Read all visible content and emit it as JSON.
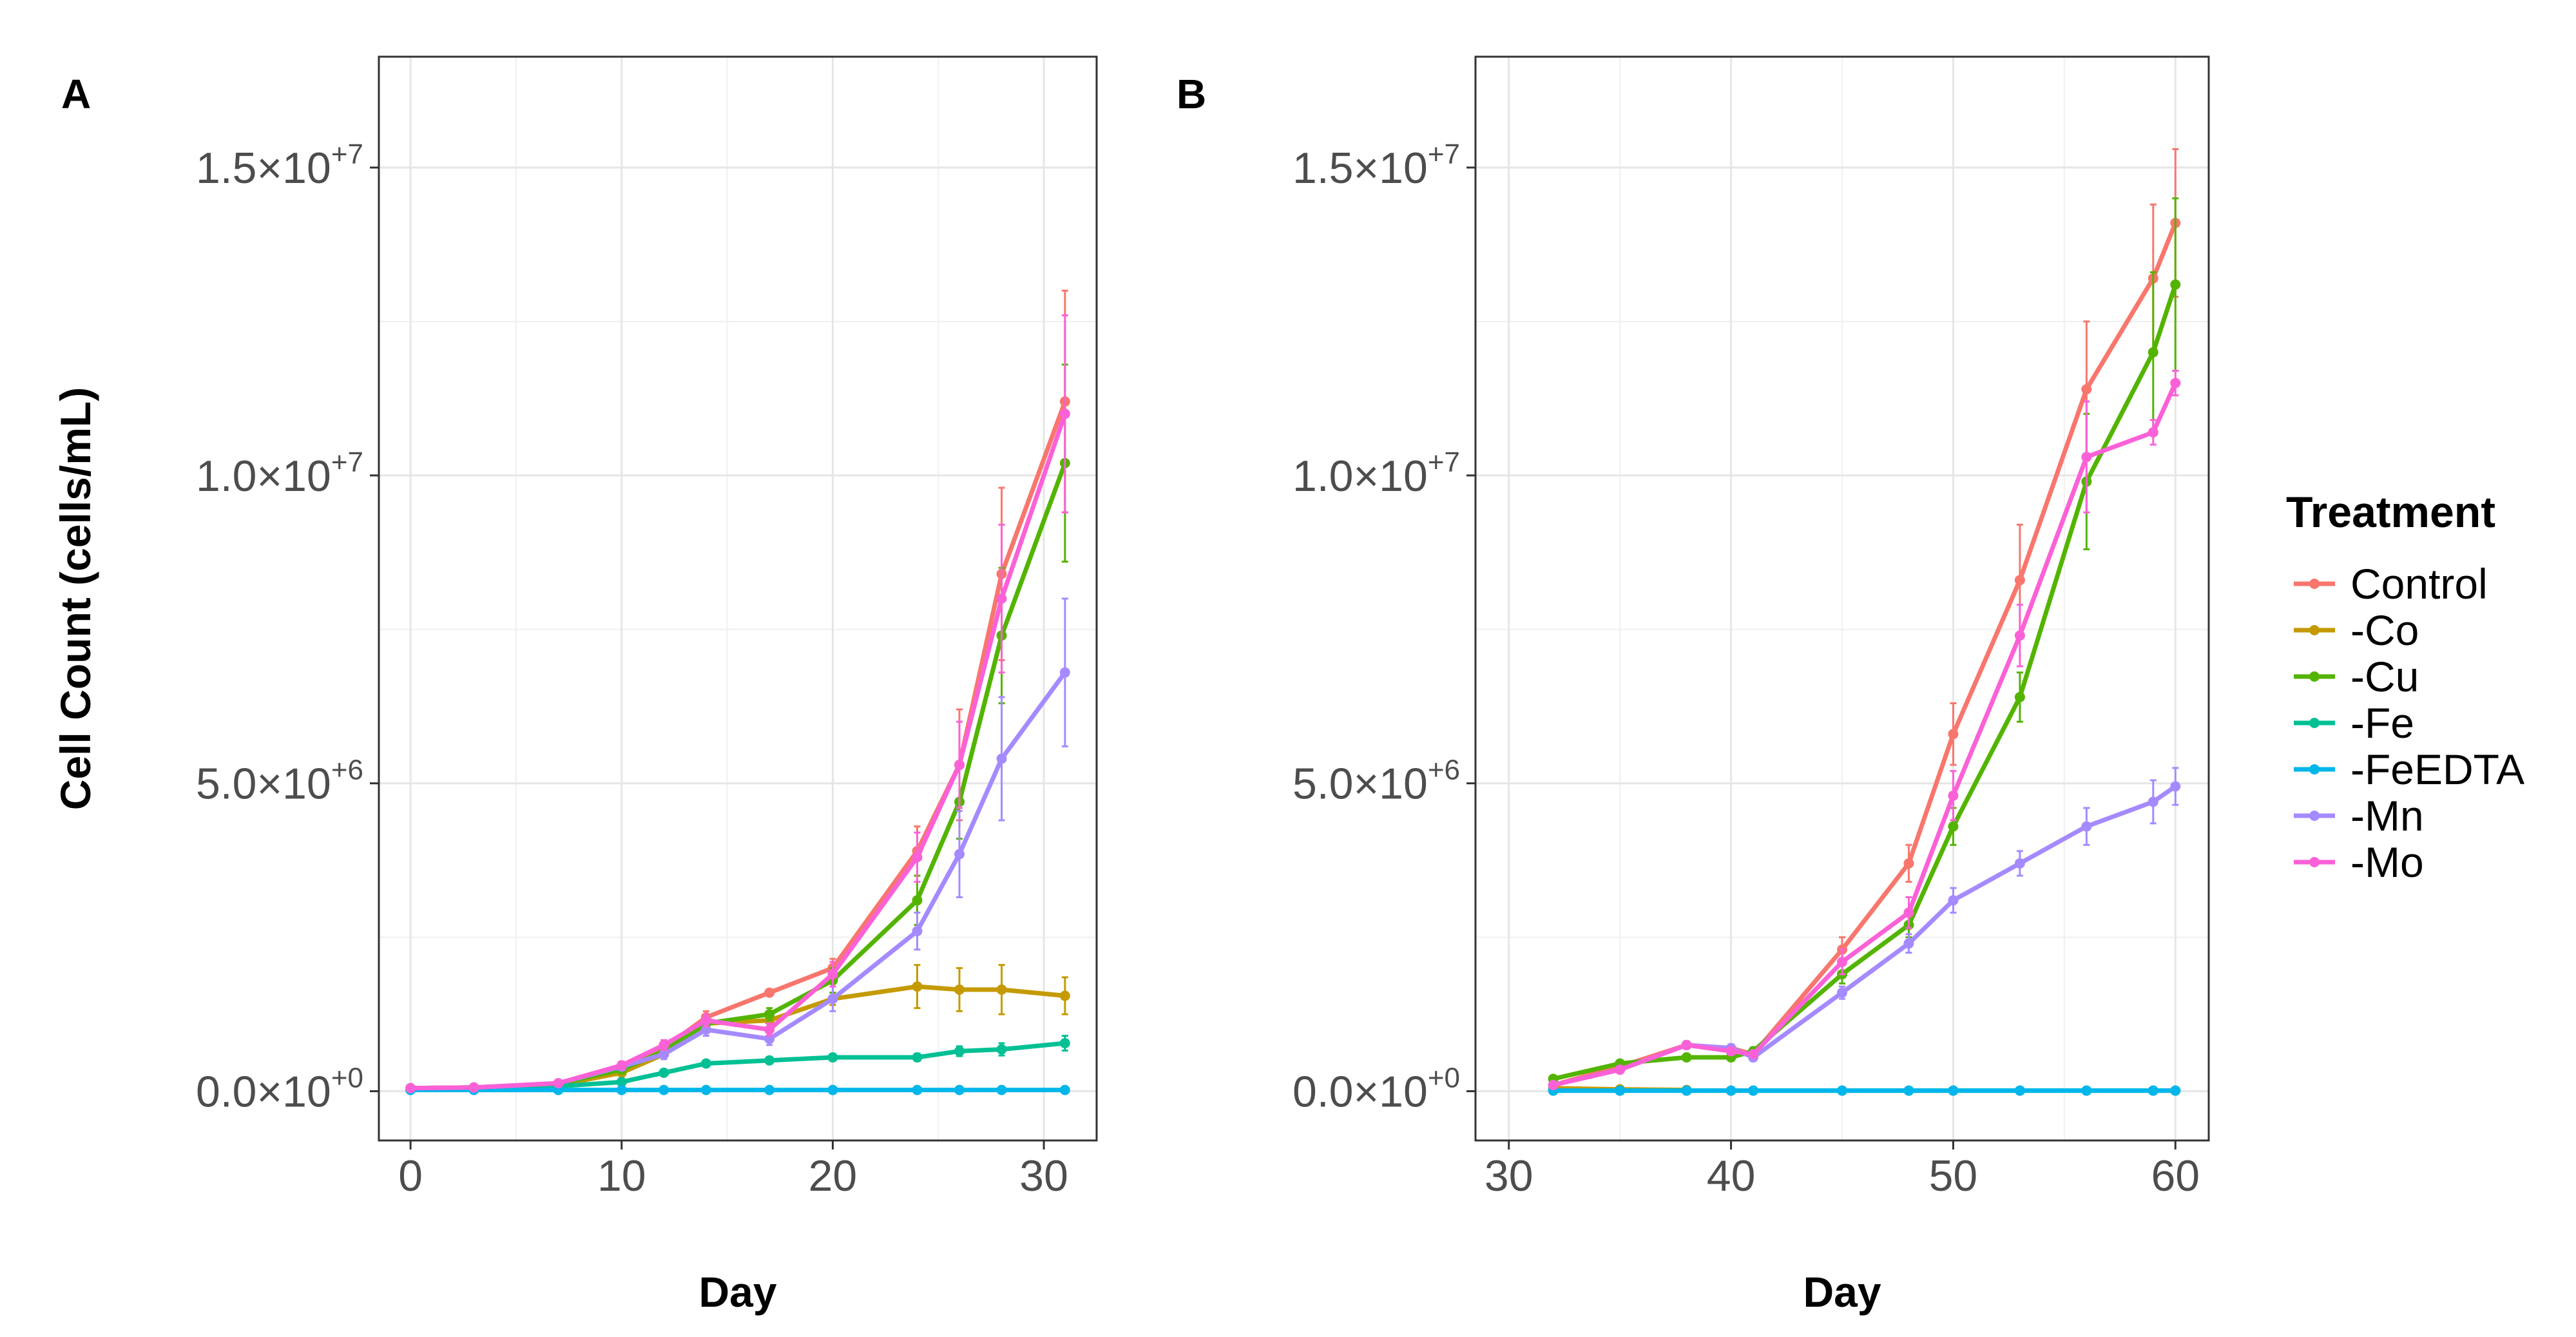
{
  "chart_data": [
    {
      "type": "line",
      "panel_label": "A",
      "xlabel": "Day",
      "ylabel": "Cell Count (cells/mL)",
      "xlim": [
        -1.5,
        32.5
      ],
      "ylim": [
        -800000,
        16800000
      ],
      "x_ticks": [
        0,
        10,
        20,
        30
      ],
      "x_tick_labels": [
        "0",
        "10",
        "20",
        "30"
      ],
      "y_ticks": [
        0,
        5000000,
        10000000,
        15000000
      ],
      "y_tick_labels": [
        {
          "mant": "0.0",
          "exp": "+0"
        },
        {
          "mant": "5.0",
          "exp": "+6"
        },
        {
          "mant": "1.0",
          "exp": "+7"
        },
        {
          "mant": "1.5",
          "exp": "+7"
        }
      ],
      "grid": true,
      "x": [
        0,
        3,
        7,
        10,
        12,
        14,
        17,
        20,
        24,
        26,
        28,
        31
      ],
      "series": [
        {
          "name": "Control",
          "color": "#F8766D",
          "values": [
            50000,
            60000,
            120000,
            380000,
            700000,
            1200000,
            1600000,
            2000000,
            3900000,
            5300000,
            8400000,
            11200000
          ],
          "errors": [
            10000,
            10000,
            30000,
            60000,
            80000,
            100000,
            50000,
            150000,
            400000,
            900000,
            1400000,
            1800000
          ]
        },
        {
          "name": "-Co",
          "color": "#C49A00",
          "values": [
            50000,
            60000,
            100000,
            300000,
            600000,
            1100000,
            1150000,
            1500000,
            1700000,
            1650000,
            1650000,
            1550000
          ],
          "errors": [
            10000,
            10000,
            20000,
            50000,
            60000,
            80000,
            100000,
            100000,
            350000,
            350000,
            400000,
            300000
          ]
        },
        {
          "name": "-Cu",
          "color": "#53B400",
          "values": [
            50000,
            60000,
            120000,
            350000,
            650000,
            1100000,
            1250000,
            1800000,
            3100000,
            4700000,
            7400000,
            10200000
          ],
          "errors": [
            10000,
            10000,
            30000,
            60000,
            80000,
            100000,
            100000,
            200000,
            400000,
            600000,
            1100000,
            1600000
          ]
        },
        {
          "name": "-Fe",
          "color": "#00C094",
          "values": [
            40000,
            50000,
            80000,
            150000,
            300000,
            450000,
            500000,
            550000,
            550000,
            650000,
            680000,
            780000
          ],
          "errors": [
            10000,
            10000,
            20000,
            30000,
            40000,
            50000,
            50000,
            50000,
            60000,
            80000,
            100000,
            120000
          ]
        },
        {
          "name": "-FeEDTA",
          "color": "#00B6EB",
          "values": [
            20000,
            20000,
            20000,
            20000,
            20000,
            20000,
            20000,
            20000,
            20000,
            20000,
            20000,
            20000
          ],
          "errors": [
            5000,
            5000,
            5000,
            5000,
            5000,
            5000,
            5000,
            5000,
            5000,
            5000,
            5000,
            5000
          ]
        },
        {
          "name": "-Mn",
          "color": "#A58AFF",
          "values": [
            50000,
            60000,
            130000,
            400000,
            600000,
            1000000,
            850000,
            1500000,
            2600000,
            3850000,
            5400000,
            6800000
          ],
          "errors": [
            10000,
            10000,
            30000,
            60000,
            80000,
            100000,
            100000,
            200000,
            300000,
            700000,
            1000000,
            1200000
          ]
        },
        {
          "name": "-Mo",
          "color": "#FB61D7",
          "values": [
            50000,
            60000,
            130000,
            420000,
            750000,
            1150000,
            1000000,
            1900000,
            3800000,
            5300000,
            8000000,
            11000000
          ],
          "errors": [
            10000,
            10000,
            30000,
            60000,
            80000,
            100000,
            100000,
            200000,
            400000,
            700000,
            1200000,
            1600000
          ]
        }
      ]
    },
    {
      "type": "line",
      "panel_label": "B",
      "xlabel": "Day",
      "ylabel": "",
      "xlim": [
        28.5,
        61.5
      ],
      "ylim": [
        -800000,
        16800000
      ],
      "x_ticks": [
        30,
        40,
        50,
        60
      ],
      "x_tick_labels": [
        "30",
        "40",
        "50",
        "60"
      ],
      "y_ticks": [
        0,
        5000000,
        10000000,
        15000000
      ],
      "y_tick_labels": [
        {
          "mant": "0.0",
          "exp": "+0"
        },
        {
          "mant": "5.0",
          "exp": "+6"
        },
        {
          "mant": "1.0",
          "exp": "+7"
        },
        {
          "mant": "1.5",
          "exp": "+7"
        }
      ],
      "grid": true,
      "x": [
        32,
        35,
        38,
        40,
        41,
        45,
        48,
        50,
        53,
        56,
        59,
        60
      ],
      "series": [
        {
          "name": "Control",
          "color": "#F8766D",
          "values": [
            100000,
            400000,
            750000,
            700000,
            600000,
            2300000,
            3700000,
            5800000,
            8300000,
            11400000,
            13200000,
            14100000
          ],
          "errors": [
            30000,
            40000,
            60000,
            60000,
            60000,
            200000,
            300000,
            500000,
            900000,
            1100000,
            1200000,
            1200000
          ]
        },
        {
          "name": "-Co",
          "color": "#C49A00",
          "values": [
            50000,
            30000,
            20000,
            null,
            null,
            null,
            null,
            null,
            null,
            null,
            null,
            null
          ],
          "errors": [
            10000,
            10000,
            10000,
            null,
            null,
            null,
            null,
            null,
            null,
            null,
            null,
            null
          ]
        },
        {
          "name": "-Cu",
          "color": "#53B400",
          "values": [
            200000,
            450000,
            550000,
            550000,
            650000,
            1900000,
            2700000,
            4300000,
            6400000,
            9900000,
            12000000,
            13100000
          ],
          "errors": [
            30000,
            40000,
            50000,
            50000,
            60000,
            150000,
            200000,
            300000,
            400000,
            1100000,
            1300000,
            1400000
          ]
        },
        {
          "name": "-Fe",
          "color": "#00C094",
          "values": [
            10000,
            10000,
            10000,
            10000,
            10000,
            10000,
            10000,
            10000,
            10000,
            10000,
            10000,
            10000
          ],
          "errors": [
            5000,
            5000,
            5000,
            5000,
            5000,
            5000,
            5000,
            5000,
            5000,
            5000,
            5000,
            5000
          ]
        },
        {
          "name": "-FeEDTA",
          "color": "#00B6EB",
          "values": [
            10000,
            10000,
            10000,
            10000,
            10000,
            10000,
            10000,
            10000,
            10000,
            10000,
            10000,
            10000
          ],
          "errors": [
            5000,
            5000,
            5000,
            5000,
            5000,
            5000,
            5000,
            5000,
            5000,
            5000,
            5000,
            5000
          ]
        },
        {
          "name": "-Mn",
          "color": "#A58AFF",
          "values": [
            100000,
            350000,
            750000,
            700000,
            550000,
            1600000,
            2400000,
            3100000,
            3700000,
            4300000,
            4700000,
            4950000
          ],
          "errors": [
            30000,
            40000,
            60000,
            60000,
            60000,
            100000,
            150000,
            200000,
            200000,
            300000,
            350000,
            300000
          ]
        },
        {
          "name": "-Mo",
          "color": "#FB61D7",
          "values": [
            100000,
            350000,
            750000,
            650000,
            600000,
            2100000,
            2900000,
            4800000,
            7400000,
            10300000,
            10700000,
            11500000
          ],
          "errors": [
            30000,
            40000,
            60000,
            60000,
            60000,
            200000,
            250000,
            400000,
            500000,
            900000,
            200000,
            200000
          ]
        }
      ]
    }
  ],
  "legend": {
    "title": "Treatment",
    "entries": [
      {
        "label": "Control",
        "color": "#F8766D"
      },
      {
        "label": "-Co",
        "color": "#C49A00"
      },
      {
        "label": "-Cu",
        "color": "#53B400"
      },
      {
        "label": "-Fe",
        "color": "#00C094"
      },
      {
        "label": "-FeEDTA",
        "color": "#00B6EB"
      },
      {
        "label": "-Mn",
        "color": "#A58AFF"
      },
      {
        "label": "-Mo",
        "color": "#FB61D7"
      }
    ]
  }
}
